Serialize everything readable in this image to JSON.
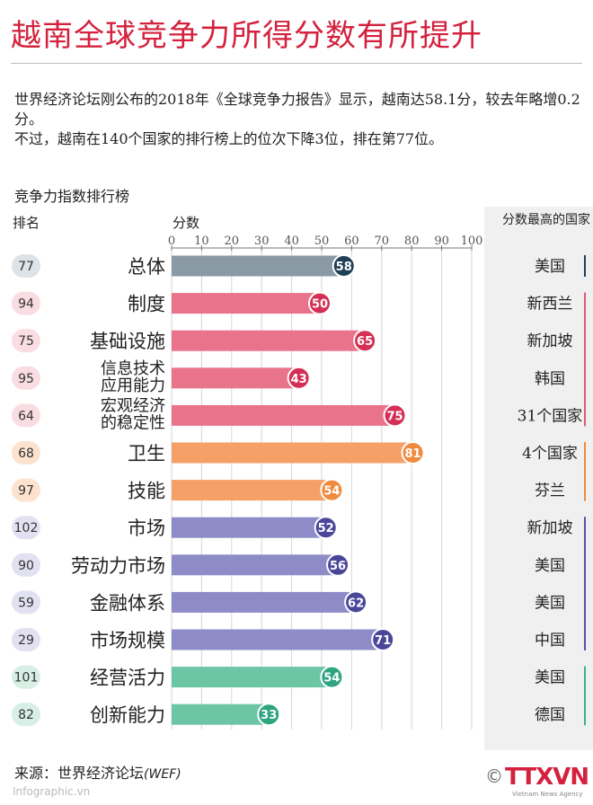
{
  "title": "越南全球竞争力所得分数有所提升",
  "intro": {
    "line1": "世界经济论坛刚公布的2018年《全球竞争力报告》显示，越南达58.1分，较去年略增0.2分。",
    "line2": "不过，越南在140个国家的排行榜上的位次下降3位，排在第77位。"
  },
  "section_label": "竞争力指数排行榜",
  "headers": {
    "rank": "排名",
    "score": "分数",
    "top": "分数最高的国家"
  },
  "chart_data": {
    "type": "bar",
    "orientation": "horizontal",
    "xlim": [
      0,
      100
    ],
    "ticks": [
      0,
      10,
      20,
      30,
      40,
      50,
      60,
      70,
      80,
      90,
      100
    ],
    "grid": true,
    "rows": [
      {
        "label": "总体",
        "rank": "77",
        "value": 58,
        "top_country": "美国",
        "group": "overall"
      },
      {
        "label": "制度",
        "rank": "94",
        "value": 50,
        "top_country": "新西兰",
        "group": "basic"
      },
      {
        "label": "基础设施",
        "rank": "75",
        "value": 65,
        "top_country": "新加坡",
        "group": "basic"
      },
      {
        "label": "信息技术\n应用能力",
        "rank": "95",
        "value": 43,
        "top_country": "韩国",
        "group": "basic"
      },
      {
        "label": "宏观经济\n的稳定性",
        "rank": "64",
        "value": 75,
        "top_country": "31个国家",
        "group": "basic"
      },
      {
        "label": "卫生",
        "rank": "68",
        "value": 81,
        "top_country": "4个国家",
        "group": "human"
      },
      {
        "label": "技能",
        "rank": "97",
        "value": 54,
        "top_country": "芬兰",
        "group": "human"
      },
      {
        "label": "市场",
        "rank": "102",
        "value": 52,
        "top_country": "新加坡",
        "group": "markets"
      },
      {
        "label": "劳动力市场",
        "rank": "90",
        "value": 56,
        "top_country": "美国",
        "group": "markets"
      },
      {
        "label": "金融体系",
        "rank": "59",
        "value": 62,
        "top_country": "美国",
        "group": "markets"
      },
      {
        "label": "市场规模",
        "rank": "29",
        "value": 71,
        "top_country": "中国",
        "group": "markets"
      },
      {
        "label": "经营活力",
        "rank": "101",
        "value": 54,
        "top_country": "美国",
        "group": "innovation"
      },
      {
        "label": "创新能力",
        "rank": "82",
        "value": 33,
        "top_country": "德国",
        "group": "innovation"
      }
    ],
    "colors": {
      "overall": {
        "bar": "#8a9aa5",
        "circle": "#1f3f57",
        "rank_bg": "#dde3e7",
        "line": "#1f3f57"
      },
      "basic": {
        "bar": "#e9738a",
        "circle": "#d42f55",
        "rank_bg": "#f9dde3",
        "line": "#e05a78"
      },
      "human": {
        "bar": "#f5a066",
        "circle": "#f08a3c",
        "rank_bg": "#fde3cf",
        "line": "#f08a3c"
      },
      "markets": {
        "bar": "#8e8cc8",
        "circle": "#4a479a",
        "rank_bg": "#e2e1f1",
        "line": "#5553a6"
      },
      "innovation": {
        "bar": "#6cc6a5",
        "circle": "#2fa480",
        "rank_bg": "#d8efe6",
        "line": "#3bb08a"
      }
    }
  },
  "source": {
    "prefix": "来源：世界经济论坛",
    "org": "(WEF)"
  },
  "watermark": "Infographic.vn",
  "logo": {
    "copyright": "©",
    "name": "TTXVN",
    "sub": "Vietnam News Agency"
  }
}
